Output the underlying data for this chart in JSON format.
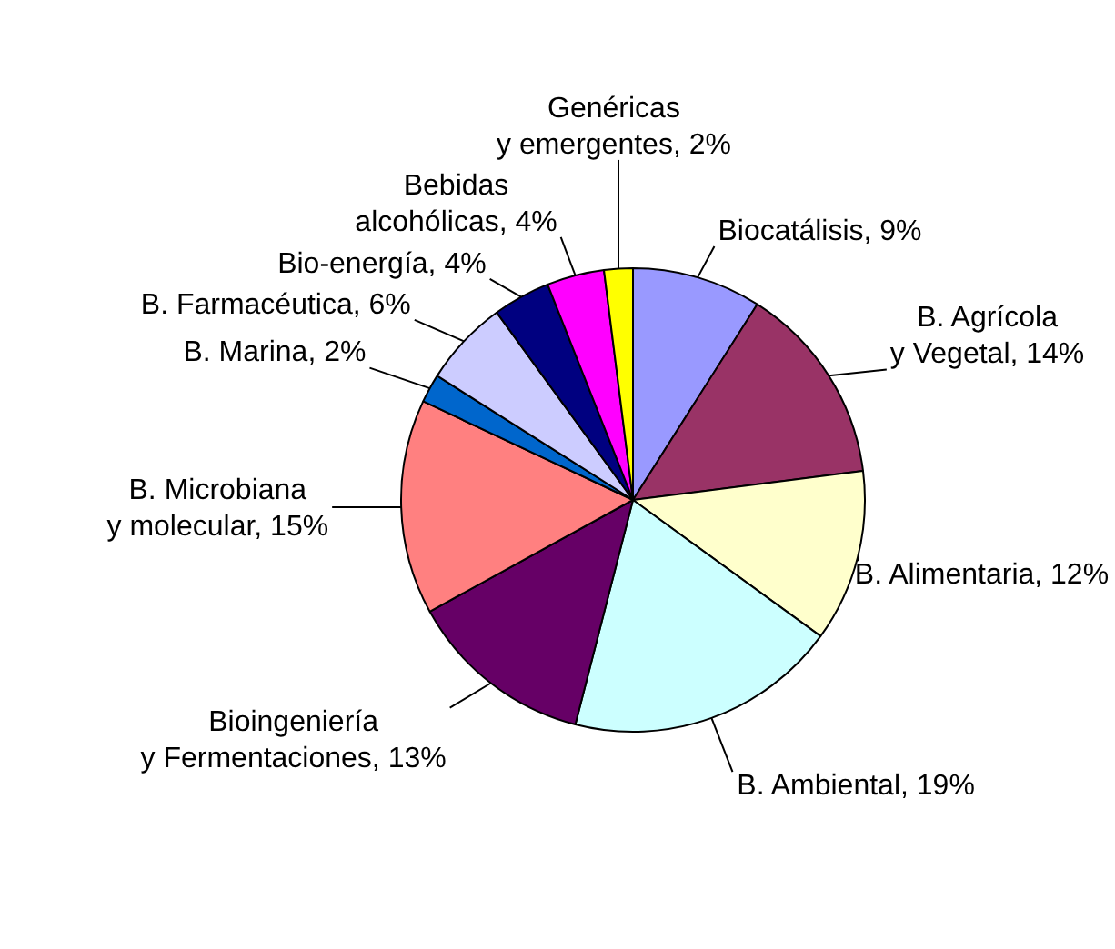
{
  "chart_data": {
    "type": "pie",
    "categories": [
      "Biocatálisis",
      "B. Agrícola y Vegetal",
      "B. Alimentaria",
      "B. Ambiental",
      "Bioingeniería y Fermentaciones",
      "B. Microbiana y molecular",
      "B. Marina",
      "B. Farmacéutica",
      "Bio-energía",
      "Bebidas alcohólicas",
      "Genéricas y emergentes"
    ],
    "values": [
      9,
      14,
      12,
      19,
      13,
      15,
      2,
      6,
      4,
      4,
      2
    ],
    "value_labels": [
      "9%",
      "14%",
      "12%",
      "19%",
      "13%",
      "15%",
      "2%",
      "6%",
      "4%",
      "4%",
      "2%"
    ],
    "colors": [
      "#9999ff",
      "#993366",
      "#ffffcc",
      "#ccffff",
      "#660066",
      "#ff8080",
      "#0066cc",
      "#ccccff",
      "#000080",
      "#ff00ff",
      "#ffff00"
    ],
    "legend": false
  }
}
